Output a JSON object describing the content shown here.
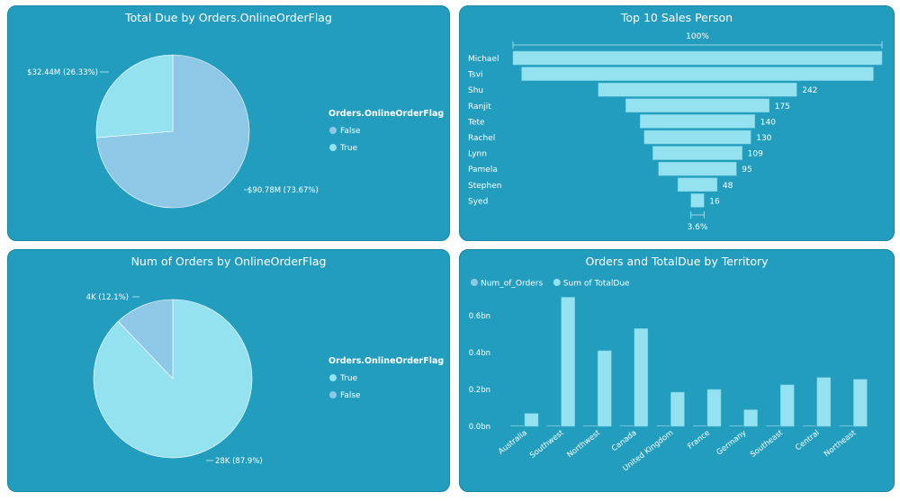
{
  "colors": {
    "panel_bg": "#229DBE",
    "slice_light": "#94E1F0",
    "slice_blue": "#8FC8E6",
    "bar": "#94E1F0",
    "bar_stroke": "#6cc9dd",
    "text": "#ffffff",
    "label": "#ffffff"
  },
  "chart_data": [
    {
      "type": "pie",
      "title": "Total Due by Orders.OnlineOrderFlag",
      "legend_title": "Orders.OnlineOrderFlag",
      "legend_items": [
        "False",
        "True"
      ],
      "slices": [
        {
          "name": "False",
          "value": 90.78,
          "label": "$90.78M (73.67%)",
          "color": "#8FC8E6"
        },
        {
          "name": "True",
          "value": 32.44,
          "label": "$32.44M (26.33%)",
          "color": "#94E1F0"
        }
      ]
    },
    {
      "type": "bar",
      "subtype": "funnel",
      "title": "Top 10 Sales Person",
      "top_label": "100%",
      "bottom_label": "3.6%",
      "categories": [
        "Michael",
        "Tsvi",
        "Shu",
        "Ranjit",
        "Tete",
        "Rachel",
        "Lynn",
        "Pamela",
        "Stephen",
        "Syed"
      ],
      "values": [
        450,
        429,
        242,
        175,
        140,
        130,
        109,
        95,
        48,
        16
      ],
      "value_labels": [
        "",
        "",
        "242",
        "175",
        "140",
        "130",
        "109",
        "95",
        "48",
        "16"
      ]
    },
    {
      "type": "pie",
      "title": "Num of Orders by OnlineOrderFlag",
      "legend_title": "Orders.OnlineOrderFlag",
      "legend_items": [
        "True",
        "False"
      ],
      "slices": [
        {
          "name": "True",
          "value": 27.66,
          "label": "28K (87.9%)",
          "color": "#94E1F0"
        },
        {
          "name": "False",
          "value": 3.81,
          "label": "4K (12.1%)",
          "color": "#8FC8E6"
        }
      ]
    },
    {
      "type": "bar",
      "title": "Orders and TotalDue by Territory",
      "legend": [
        "Num_of_Orders",
        "Sum of TotalDue"
      ],
      "categories": [
        "Australia",
        "Southwest",
        "Northwest",
        "Canada",
        "United Kingdom",
        "France",
        "Germany",
        "Southeast",
        "Central",
        "Northeast"
      ],
      "series": [
        {
          "name": "Num_of_Orders",
          "values": [
            0.0001,
            0.0001,
            0.0001,
            0.0001,
            0.0001,
            0.0001,
            0.0001,
            0.0001,
            0.0001,
            0.0001
          ]
        },
        {
          "name": "Sum of TotalDue",
          "values": [
            0.07,
            0.7,
            0.41,
            0.53,
            0.185,
            0.2,
            0.09,
            0.225,
            0.265,
            0.255
          ]
        }
      ],
      "yticks": [
        "0.0bn",
        "0.2bn",
        "0.4bn",
        "0.6bn"
      ],
      "ylim": [
        0,
        0.7
      ]
    }
  ]
}
